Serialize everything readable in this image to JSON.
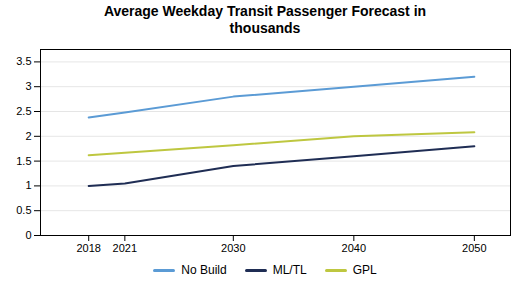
{
  "chart_data": {
    "type": "line",
    "title": "Average Weekday Transit Passenger Forecast in\nthousands",
    "x": [
      2018,
      2021,
      2030,
      2040,
      2050
    ],
    "series": [
      {
        "name": "No Build",
        "color": "#5b9bd5",
        "values": [
          2.38,
          2.48,
          2.8,
          3.0,
          3.2
        ]
      },
      {
        "name": "ML/TL",
        "color": "#1f2d54",
        "values": [
          1.0,
          1.05,
          1.4,
          1.6,
          1.8
        ]
      },
      {
        "name": "GPL",
        "color": "#bec740",
        "values": [
          1.62,
          1.67,
          1.82,
          2.0,
          2.08
        ]
      }
    ],
    "xlim": [
      2014,
      2053
    ],
    "xticks": [
      2018,
      2021,
      2030,
      2040,
      2050
    ],
    "ylim": [
      0,
      3.75
    ],
    "yticks": [
      0,
      0.5,
      1.0,
      1.5,
      2.0,
      2.5,
      3.0,
      3.5
    ],
    "grid": true,
    "legend": "bottom"
  }
}
